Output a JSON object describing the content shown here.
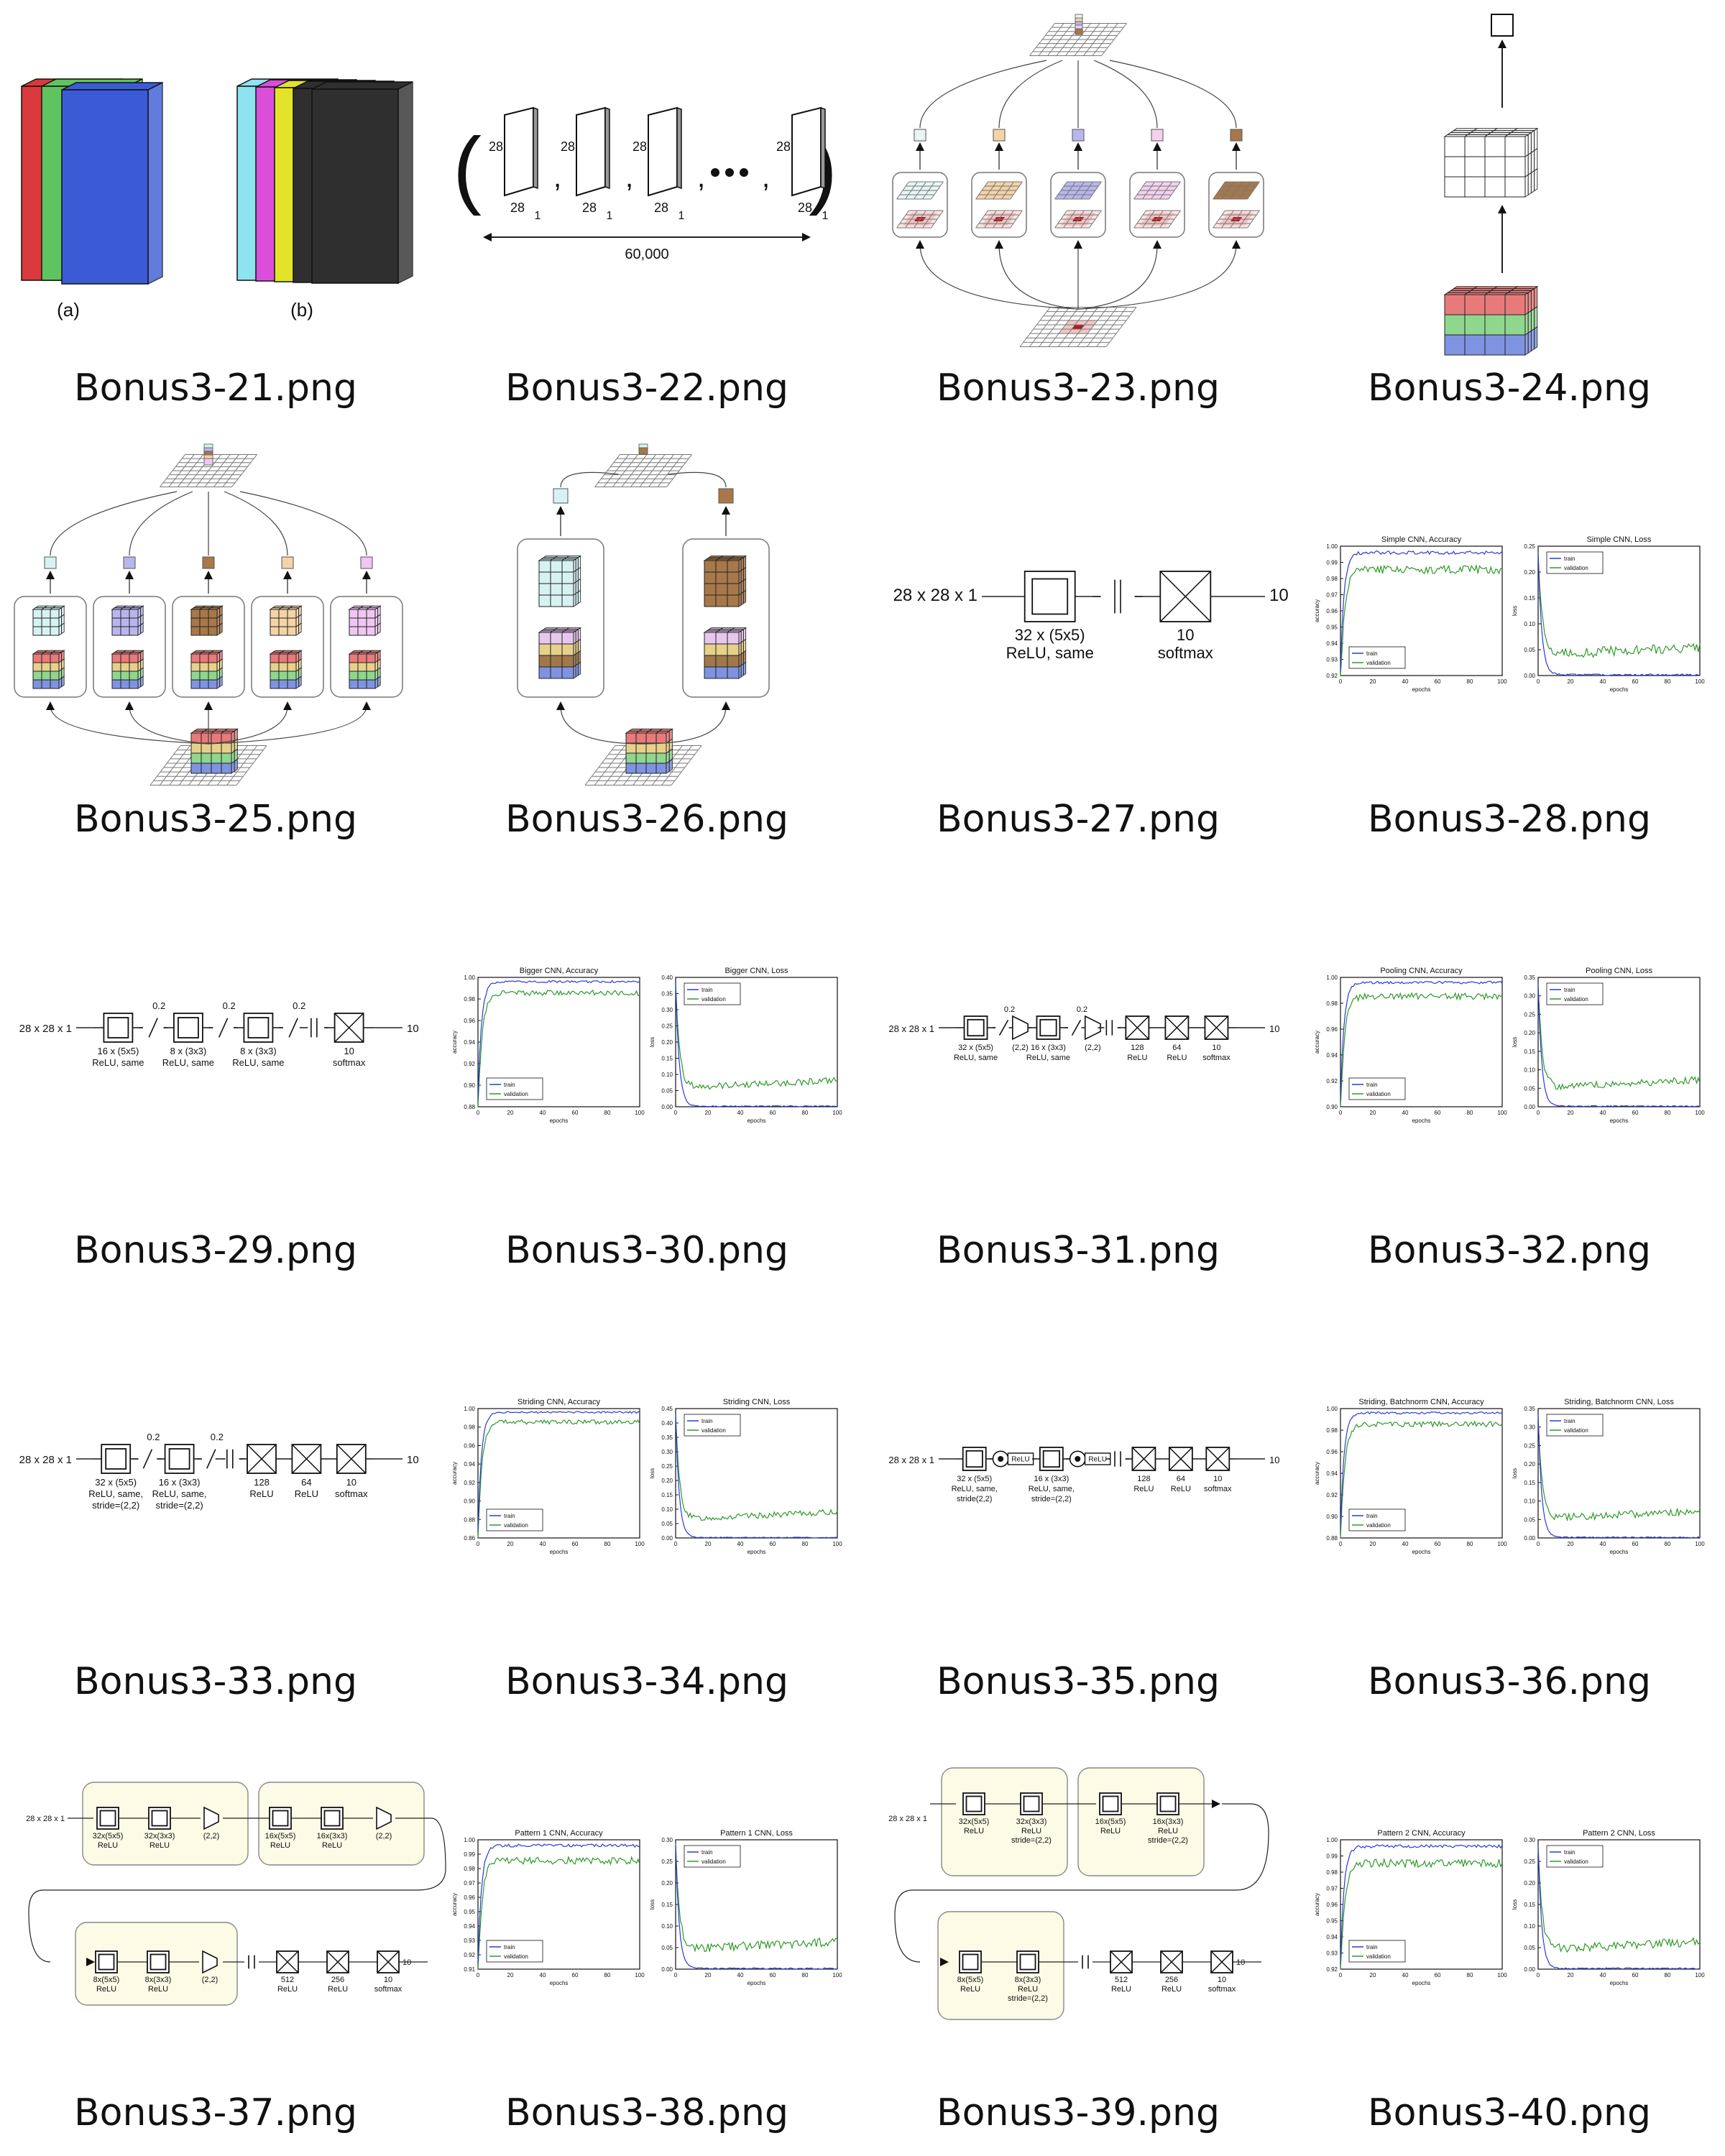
{
  "thumbnails": [
    {
      "filename": "Bonus3-21.png",
      "kind": "stacks",
      "labels": [
        "(a)",
        "(b)"
      ]
    },
    {
      "filename": "Bonus3-22.png",
      "kind": "dataset",
      "dims": [
        "28",
        "28",
        "1"
      ],
      "count": "60,000"
    },
    {
      "filename": "Bonus3-23.png",
      "kind": "filters5",
      "colors": [
        "#e6f7f5",
        "#f4d3a7",
        "#b9b6ee",
        "#f5d0ef",
        "#a8784a"
      ]
    },
    {
      "filename": "Bonus3-24.png",
      "kind": "cube"
    },
    {
      "filename": "Bonus3-25.png",
      "kind": "filters5-3d",
      "colors": [
        "#d6f3f2",
        "#b9b6ee",
        "#a8784a",
        "#f4d3a7",
        "#f0c6f2"
      ]
    },
    {
      "filename": "Bonus3-26.png",
      "kind": "filters2-3d",
      "colors": [
        "#d6f3f2",
        "#a8784a"
      ]
    },
    {
      "filename": "Bonus3-27.png",
      "kind": "net",
      "input": "28 x 28 x 1",
      "output": "10",
      "layers": [
        {
          "type": "conv",
          "lines": [
            "32 x (5x5)",
            "ReLU, same"
          ]
        },
        {
          "type": "flatten",
          "lines": []
        },
        {
          "type": "dense",
          "lines": [
            "10",
            "softmax"
          ]
        }
      ]
    },
    {
      "filename": "Bonus3-28.png",
      "kind": "plots",
      "acc_title": "Simple CNN, Accuracy",
      "loss_title": "Simple CNN, Loss",
      "acc_ylim": [
        0.92,
        1.0
      ],
      "loss_ylim": [
        0.0,
        0.25
      ],
      "acc_ticks": [
        "1.00",
        "0.99",
        "0.98",
        "0.97",
        "0.96",
        "0.95",
        "0.94",
        "0.93",
        "0.92"
      ],
      "loss_ticks": [
        "0.25",
        "0.20",
        "0.15",
        "0.10",
        "0.05",
        "0.00"
      ],
      "acc_legend_pos": "bottom-left",
      "loss_legend_pos": "top-left"
    },
    {
      "filename": "Bonus3-29.png",
      "kind": "net",
      "input": "28 x 28 x 1",
      "output": "10",
      "layers": [
        {
          "type": "conv",
          "lines": [
            "16 x (5x5)",
            "ReLU, same"
          ]
        },
        {
          "type": "dropout",
          "lines": [
            "0.2"
          ]
        },
        {
          "type": "conv",
          "lines": [
            "8 x (3x3)",
            "ReLU, same"
          ]
        },
        {
          "type": "dropout",
          "lines": [
            "0.2"
          ]
        },
        {
          "type": "conv",
          "lines": [
            "8 x (3x3)",
            "ReLU, same"
          ]
        },
        {
          "type": "dropout",
          "lines": [
            "0.2"
          ]
        },
        {
          "type": "flatten",
          "lines": []
        },
        {
          "type": "dense",
          "lines": [
            "10",
            "softmax"
          ]
        }
      ]
    },
    {
      "filename": "Bonus3-30.png",
      "kind": "plots",
      "acc_title": "Bigger CNN, Accuracy",
      "loss_title": "Bigger CNN, Loss",
      "acc_ylim": [
        0.88,
        1.0
      ],
      "loss_ylim": [
        0.0,
        0.4
      ],
      "acc_ticks": [
        "1.00",
        "0.98",
        "0.96",
        "0.94",
        "0.92",
        "0.90",
        "0.88"
      ],
      "loss_ticks": [
        "0.40",
        "0.35",
        "0.30",
        "0.25",
        "0.20",
        "0.15",
        "0.10",
        "0.05",
        "0.00"
      ],
      "acc_legend_pos": "bottom-left",
      "loss_legend_pos": "top-left"
    },
    {
      "filename": "Bonus3-31.png",
      "kind": "net",
      "input": "28 x 28 x 1",
      "output": "10",
      "layers": [
        {
          "type": "conv",
          "lines": [
            "32 x (5x5)",
            "ReLU, same"
          ]
        },
        {
          "type": "dropout",
          "lines": [
            "0.2"
          ]
        },
        {
          "type": "pool",
          "lines": [
            "(2,2)"
          ]
        },
        {
          "type": "conv",
          "lines": [
            "16 x (3x3)",
            "ReLU, same"
          ]
        },
        {
          "type": "dropout",
          "lines": [
            "0.2"
          ]
        },
        {
          "type": "pool",
          "lines": [
            "(2,2)"
          ]
        },
        {
          "type": "flatten",
          "lines": []
        },
        {
          "type": "dense",
          "lines": [
            "128",
            "ReLU"
          ]
        },
        {
          "type": "dense",
          "lines": [
            "64",
            "ReLU"
          ]
        },
        {
          "type": "dense",
          "lines": [
            "10",
            "softmax"
          ]
        }
      ]
    },
    {
      "filename": "Bonus3-32.png",
      "kind": "plots",
      "acc_title": "Pooling CNN, Accuracy",
      "loss_title": "Pooling CNN, Loss",
      "acc_ylim": [
        0.9,
        1.0
      ],
      "loss_ylim": [
        0.0,
        0.35
      ],
      "acc_ticks": [
        "1.00",
        "0.98",
        "0.96",
        "0.94",
        "0.92",
        "0.90"
      ],
      "loss_ticks": [
        "0.35",
        "0.30",
        "0.25",
        "0.20",
        "0.15",
        "0.10",
        "0.05",
        "0.00"
      ],
      "acc_legend_pos": "bottom-left",
      "loss_legend_pos": "top-left"
    },
    {
      "filename": "Bonus3-33.png",
      "kind": "net",
      "input": "28 x 28 x 1",
      "output": "10",
      "layers": [
        {
          "type": "conv",
          "lines": [
            "32 x (5x5)",
            "ReLU, same,",
            "stride=(2,2)"
          ]
        },
        {
          "type": "dropout",
          "lines": [
            "0.2"
          ]
        },
        {
          "type": "conv",
          "lines": [
            "16 x (3x3)",
            "ReLU, same,",
            "stride=(2,2)"
          ]
        },
        {
          "type": "dropout",
          "lines": [
            "0.2"
          ]
        },
        {
          "type": "flatten",
          "lines": []
        },
        {
          "type": "dense",
          "lines": [
            "128",
            "ReLU"
          ]
        },
        {
          "type": "dense",
          "lines": [
            "64",
            "ReLU"
          ]
        },
        {
          "type": "dense",
          "lines": [
            "10",
            "softmax"
          ]
        }
      ]
    },
    {
      "filename": "Bonus3-34.png",
      "kind": "plots",
      "acc_title": "Striding CNN, Accuracy",
      "loss_title": "Striding CNN, Loss",
      "acc_ylim": [
        0.86,
        1.0
      ],
      "loss_ylim": [
        0.0,
        0.45
      ],
      "acc_ticks": [
        "1.00",
        "0.98",
        "0.96",
        "0.94",
        "0.92",
        "0.90",
        "0.88",
        "0.86"
      ],
      "loss_ticks": [
        "0.45",
        "0.40",
        "0.35",
        "0.30",
        "0.25",
        "0.20",
        "0.15",
        "0.10",
        "0.05",
        "0.00"
      ],
      "acc_legend_pos": "bottom-left",
      "loss_legend_pos": "top-left"
    },
    {
      "filename": "Bonus3-35.png",
      "kind": "net",
      "input": "28 x 28 x 1",
      "output": "10",
      "layers": [
        {
          "type": "conv",
          "lines": [
            "32 x (5x5)",
            "ReLU, same,",
            "stride(2,2)"
          ]
        },
        {
          "type": "bn",
          "lines": []
        },
        {
          "type": "relu",
          "lines": [
            "ReLU"
          ]
        },
        {
          "type": "conv",
          "lines": [
            "16 x (3x3)",
            "ReLU, same,",
            "stride=(2,2)"
          ]
        },
        {
          "type": "bn",
          "lines": []
        },
        {
          "type": "relu",
          "lines": [
            "ReLU"
          ]
        },
        {
          "type": "flatten",
          "lines": []
        },
        {
          "type": "dense",
          "lines": [
            "128",
            "ReLU"
          ]
        },
        {
          "type": "dense",
          "lines": [
            "64",
            "ReLU"
          ]
        },
        {
          "type": "dense",
          "lines": [
            "10",
            "softmax"
          ]
        }
      ]
    },
    {
      "filename": "Bonus3-36.png",
      "kind": "plots",
      "acc_title": "Striding, Batchnorm CNN, Accuracy",
      "loss_title": "Striding, Batchnorm CNN, Loss",
      "acc_ylim": [
        0.88,
        1.0
      ],
      "loss_ylim": [
        0.0,
        0.35
      ],
      "acc_ticks": [
        "1.00",
        "0.98",
        "0.96",
        "0.94",
        "0.92",
        "0.90",
        "0.88"
      ],
      "loss_ticks": [
        "0.35",
        "0.30",
        "0.25",
        "0.20",
        "0.15",
        "0.10",
        "0.05",
        "0.00"
      ],
      "acc_legend_pos": "bottom-left",
      "loss_legend_pos": "top-left"
    },
    {
      "filename": "Bonus3-37.png",
      "kind": "pattern1",
      "input": "28 x 28 x 1",
      "output": "10",
      "row1a": [
        [
          "32x(5x5)",
          "ReLU"
        ],
        [
          "32x(3x3)",
          "ReLU"
        ],
        [
          "(2,2)"
        ]
      ],
      "row1b": [
        [
          "16x(5x5)",
          "ReLU"
        ],
        [
          "16x(3x3)",
          "ReLU"
        ],
        [
          "(2,2)"
        ]
      ],
      "row2": [
        [
          "8x(5x5)",
          "ReLU"
        ],
        [
          "8x(3x3)",
          "ReLU"
        ],
        [
          "(2,2)"
        ]
      ],
      "dense": [
        [
          "512",
          "ReLU"
        ],
        [
          "256",
          "ReLU"
        ],
        [
          "10",
          "softmax"
        ]
      ]
    },
    {
      "filename": "Bonus3-38.png",
      "kind": "plots",
      "acc_title": "Pattern 1 CNN, Accuracy",
      "loss_title": "Pattern 1 CNN, Loss",
      "acc_ylim": [
        0.91,
        1.0
      ],
      "loss_ylim": [
        0.0,
        0.3
      ],
      "acc_ticks": [
        "1.00",
        "0.99",
        "0.98",
        "0.97",
        "0.96",
        "0.95",
        "0.94",
        "0.93",
        "0.92",
        "0.91"
      ],
      "loss_ticks": [
        "0.30",
        "0.25",
        "0.20",
        "0.15",
        "0.10",
        "0.05",
        "0.00"
      ],
      "acc_legend_pos": "bottom-left",
      "loss_legend_pos": "top-left"
    },
    {
      "filename": "Bonus3-39.png",
      "kind": "pattern2",
      "input": "28 x 28 x 1",
      "output": "10",
      "row1a": [
        [
          "32x(5x5)",
          "ReLU"
        ],
        [
          "32x(3x3)",
          "ReLU",
          "stride=(2,2)"
        ]
      ],
      "row1b": [
        [
          "16x(5x5)",
          "ReLU"
        ],
        [
          "16x(3x3)",
          "ReLU",
          "stride=(2,2)"
        ]
      ],
      "row2": [
        [
          "8x(5x5)",
          "ReLU"
        ],
        [
          "8x(3x3)",
          "ReLU",
          "stride=(2,2)"
        ]
      ],
      "dense": [
        [
          "512",
          "ReLU"
        ],
        [
          "256",
          "ReLU"
        ],
        [
          "10",
          "softmax"
        ]
      ]
    },
    {
      "filename": "Bonus3-40.png",
      "kind": "plots",
      "acc_title": "Pattern 2 CNN, Accuracy",
      "loss_title": "Pattern 2 CNN, Loss",
      "acc_ylim": [
        0.92,
        1.0
      ],
      "loss_ylim": [
        0.0,
        0.3
      ],
      "acc_ticks": [
        "1.00",
        "0.99",
        "0.98",
        "0.97",
        "0.96",
        "0.95",
        "0.94",
        "0.93",
        "0.92"
      ],
      "loss_ticks": [
        "0.30",
        "0.25",
        "0.20",
        "0.15",
        "0.10",
        "0.05",
        "0.00"
      ],
      "acc_legend_pos": "bottom-left",
      "loss_legend_pos": "top-left"
    }
  ],
  "plot_common": {
    "xlabel": "epochs",
    "acc_ylabel": "accuracy",
    "loss_ylabel": "loss",
    "x_ticks": [
      "0",
      "20",
      "40",
      "60",
      "80",
      "100"
    ],
    "legend": [
      "train",
      "validation"
    ],
    "train_color": "#2b3bd6",
    "val_color": "#2e9a2a"
  },
  "colors": {
    "red": "#d9393a",
    "green": "#5fc45f",
    "blue": "#3b5bd6",
    "cyan": "#8ee3f0",
    "magenta": "#d94fd9",
    "yellow": "#e3e32a",
    "dark": "#2f2f2f",
    "pattern_fill": "#fbfbe6"
  }
}
